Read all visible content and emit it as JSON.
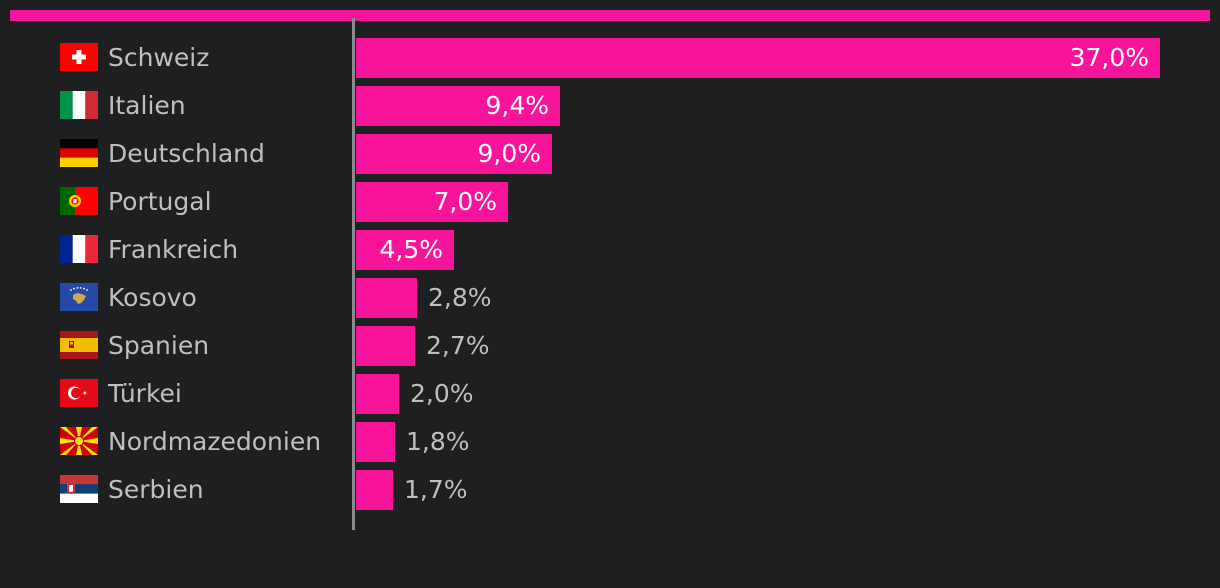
{
  "chart_data": {
    "type": "bar",
    "orientation": "horizontal",
    "categories": [
      "Schweiz",
      "Italien",
      "Deutschland",
      "Portugal",
      "Frankreich",
      "Kosovo",
      "Spanien",
      "Türkei",
      "Nordmazedonien",
      "Serbien"
    ],
    "values": [
      37.0,
      9.4,
      9.0,
      7.0,
      4.5,
      2.8,
      2.7,
      2.0,
      1.8,
      1.7
    ],
    "value_labels": [
      "37,0%",
      "9,4%",
      "9,0%",
      "7,0%",
      "4,5%",
      "2,8%",
      "2,7%",
      "2,0%",
      "1,8%",
      "1,7%"
    ],
    "flags": [
      "flag-switzerland",
      "flag-italy",
      "flag-germany",
      "flag-portugal",
      "flag-france",
      "flag-kosovo",
      "flag-spain",
      "flag-turkey",
      "flag-north-macedonia",
      "flag-serbia"
    ],
    "xlim": [
      0,
      37
    ],
    "grid": false,
    "legend": "none",
    "colors": {
      "bar": "#f7149b",
      "accent_bar": "#f7149b",
      "background": "#1e1f21",
      "axis": "#8a8b8d",
      "label_text": "#bfbfc1",
      "inside_value_text": "#ffffff"
    }
  }
}
